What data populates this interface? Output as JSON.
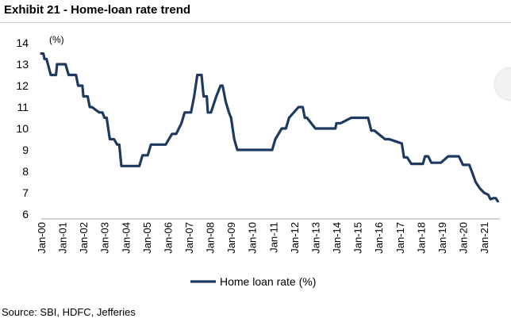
{
  "title": "Exhibit 21 - Home-loan rate trend",
  "source": "Source: SBI, HDFC, Jefferies",
  "chart_data": {
    "type": "line",
    "ylabel": "(%)",
    "ylim": [
      6,
      14
    ],
    "yticks": [
      6,
      7,
      8,
      9,
      10,
      11,
      12,
      13,
      14
    ],
    "xlim": [
      2000.0,
      2021.75
    ],
    "xticks": [
      "Jan-00",
      "Jan-01",
      "Jan-02",
      "Jan-03",
      "Jan-04",
      "Jan-05",
      "Jan-06",
      "Jan-07",
      "Jan-08",
      "Jan-09",
      "Jan-10",
      "Jan-11",
      "Jan-12",
      "Jan-13",
      "Jan-14",
      "Jan-15",
      "Jan-16",
      "Jan-17",
      "Jan-18",
      "Jan-19",
      "Jan-20",
      "Jan-21"
    ],
    "grid": false,
    "legend": "bottom",
    "line_color": "#1f3a5f",
    "series": [
      {
        "name": "Home loan rate (%)",
        "x": [
          2000.0,
          2000.1,
          2000.15,
          2000.25,
          2000.45,
          2000.7,
          2000.75,
          2001.15,
          2001.3,
          2001.65,
          2001.75,
          2001.95,
          2002.0,
          2002.2,
          2002.3,
          2002.4,
          2002.75,
          2002.9,
          2003.0,
          2003.1,
          2003.25,
          2003.45,
          2003.6,
          2003.7,
          2003.8,
          2004.0,
          2004.25,
          2004.4,
          2004.65,
          2004.8,
          2005.05,
          2005.2,
          2005.5,
          2005.75,
          2005.9,
          2006.2,
          2006.4,
          2006.65,
          2006.8,
          2007.1,
          2007.25,
          2007.4,
          2007.6,
          2007.7,
          2007.85,
          2007.9,
          2008.05,
          2008.3,
          2008.5,
          2008.6,
          2008.75,
          2008.9,
          2009.0,
          2009.15,
          2009.3,
          2009.45,
          2010.0,
          2010.5,
          2010.8,
          2010.95,
          2011.1,
          2011.4,
          2011.6,
          2011.75,
          2012.2,
          2012.4,
          2012.5,
          2012.6,
          2013.0,
          2013.5,
          2013.7,
          2013.95,
          2014.0,
          2014.2,
          2014.7,
          2015.0,
          2015.2,
          2015.5,
          2015.65,
          2015.8,
          2016.3,
          2016.5,
          2016.8,
          2017.1,
          2017.2,
          2017.35,
          2017.55,
          2017.7,
          2018.1,
          2018.2,
          2018.35,
          2018.5,
          2018.8,
          2018.95,
          2019.3,
          2019.6,
          2019.7,
          2019.8,
          2020.0,
          2020.3,
          2020.45,
          2020.6,
          2020.8,
          2021.0,
          2021.2,
          2021.3,
          2021.45,
          2021.55,
          2021.65
        ]
      }
    ]
  }
}
